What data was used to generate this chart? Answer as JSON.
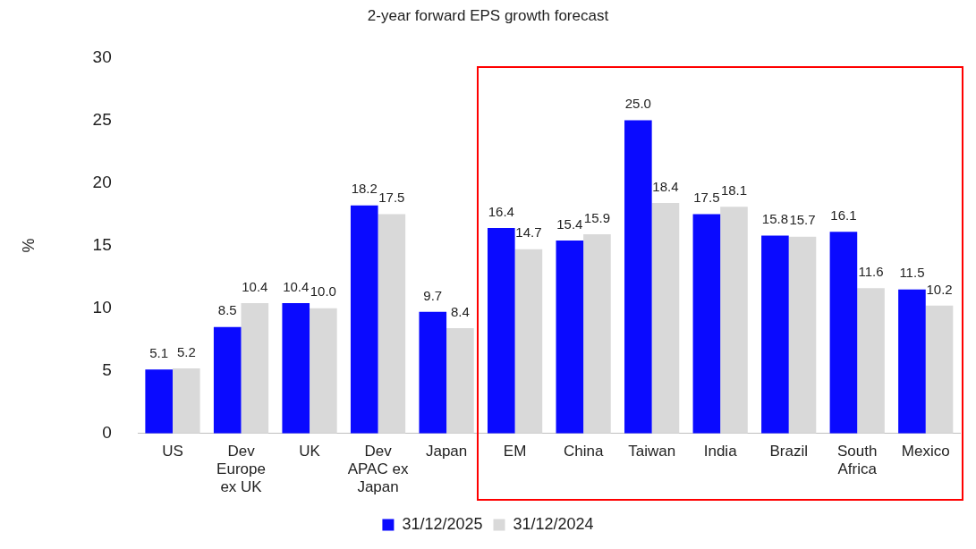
{
  "chart_data": {
    "type": "bar",
    "title": "2-year forward EPS growth forecast",
    "ylabel": "%",
    "categories": [
      "US",
      "Dev Europe ex UK",
      "UK",
      "Dev APAC ex Japan",
      "Japan",
      "EM",
      "China",
      "Taiwan",
      "India",
      "Brazil",
      "South Africa",
      "Mexico"
    ],
    "series": [
      {
        "name": "31/12/2025",
        "color": "#0a0aff",
        "values": [
          5.1,
          8.5,
          10.4,
          18.2,
          9.7,
          16.4,
          15.4,
          25.0,
          17.5,
          15.8,
          16.1,
          11.5
        ],
        "value_labels": [
          "5.1",
          "8.5",
          "10.4",
          "18.2",
          "9.7",
          "16.4",
          "15.4",
          "25.0",
          "17.5",
          "15.8",
          "16.1",
          "11.5"
        ]
      },
      {
        "name": "31/12/2024",
        "color": "#d9d9d9",
        "values": [
          5.2,
          10.4,
          10.0,
          17.5,
          8.4,
          14.7,
          15.9,
          18.4,
          18.1,
          15.7,
          11.6,
          10.2
        ],
        "value_labels": [
          "5.2",
          "10.4",
          "10.0",
          "17.5",
          "8.4",
          "14.7",
          "15.9",
          "18.4",
          "18.1",
          "15.7",
          "11.6",
          "10.2"
        ]
      }
    ],
    "ylim": [
      0,
      30
    ],
    "yticks": [
      0,
      5,
      10,
      15,
      20,
      25,
      30
    ],
    "grid": false,
    "legend": "bottom"
  }
}
